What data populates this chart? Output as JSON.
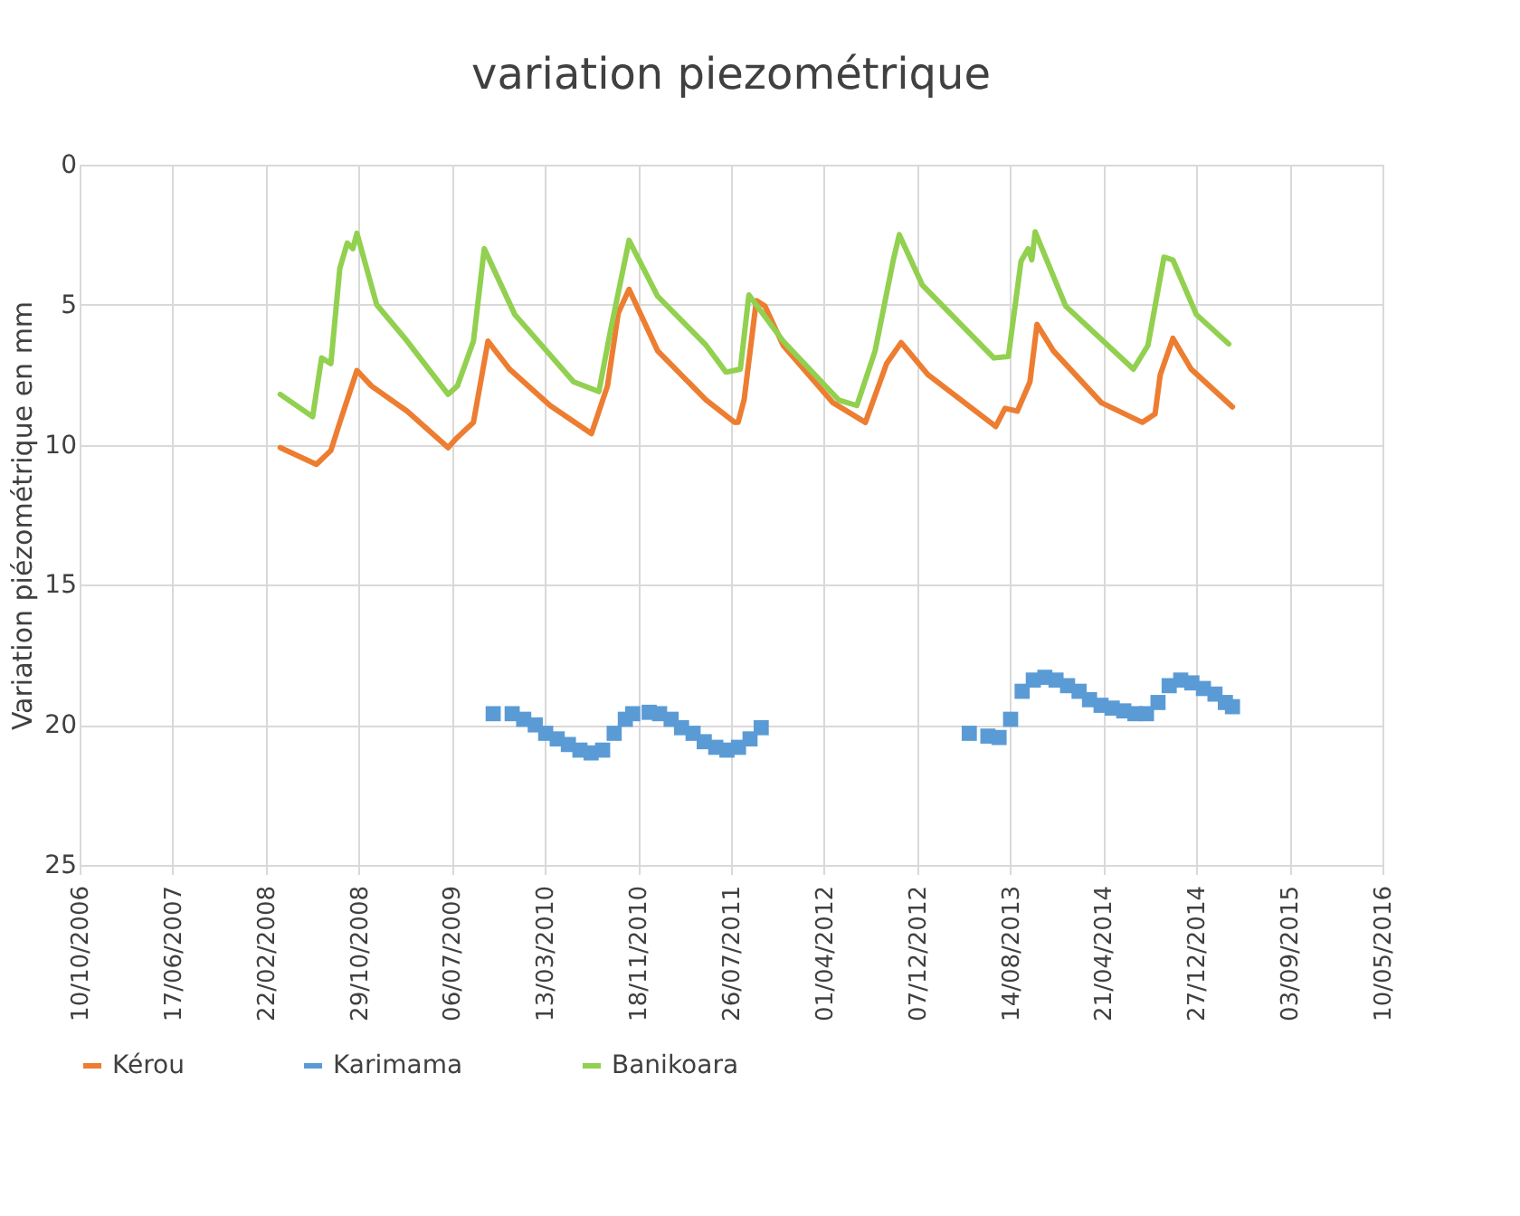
{
  "chart_data": {
    "type": "line",
    "title": "variation piezométrique",
    "ylabel": "Variation piézométrique en mm",
    "xlim": [
      "2006-10-10",
      "2016-05-10"
    ],
    "xticks": [
      {
        "value": "2006-10-10",
        "label": "10/10/2006"
      },
      {
        "value": "2007-06-17",
        "label": "17/06/2007"
      },
      {
        "value": "2008-02-22",
        "label": "22/02/2008"
      },
      {
        "value": "2008-10-29",
        "label": "29/10/2008"
      },
      {
        "value": "2009-07-06",
        "label": "06/07/2009"
      },
      {
        "value": "2010-03-13",
        "label": "13/03/2010"
      },
      {
        "value": "2010-11-18",
        "label": "18/11/2010"
      },
      {
        "value": "2011-07-26",
        "label": "26/07/2011"
      },
      {
        "value": "2012-04-01",
        "label": "01/04/2012"
      },
      {
        "value": "2012-12-07",
        "label": "07/12/2012"
      },
      {
        "value": "2013-08-14",
        "label": "14/08/2013"
      },
      {
        "value": "2014-04-21",
        "label": "21/04/2014"
      },
      {
        "value": "2014-12-27",
        "label": "27/12/2014"
      },
      {
        "value": "2015-09-03",
        "label": "03/09/2015"
      },
      {
        "value": "2016-05-10",
        "label": "10/05/2016"
      }
    ],
    "ylim": [
      25,
      0
    ],
    "yticks": [
      0,
      5,
      10,
      15,
      20,
      25
    ],
    "grid": true,
    "legend": "bottom",
    "series": [
      {
        "name": "Kérou",
        "color": "#ed7d31",
        "x": [
          "2008-04-01",
          "2008-07-07",
          "2008-08-15",
          "2008-09-08",
          "2008-10-24",
          "2008-12-02",
          "2009-03-08",
          "2009-06-26",
          "2009-07-16",
          "2009-09-02",
          "2009-10-11",
          "2009-12-08",
          "2010-03-27",
          "2010-07-16",
          "2010-08-28",
          "2010-09-26",
          "2010-10-25",
          "2011-01-10",
          "2011-05-20",
          "2011-08-05",
          "2011-08-14",
          "2011-08-30",
          "2011-10-02",
          "2011-10-25",
          "2011-12-13",
          "2012-04-25",
          "2012-07-21",
          "2012-09-16",
          "2012-10-25",
          "2013-01-05",
          "2013-07-06",
          "2013-07-31",
          "2013-09-02",
          "2013-10-06",
          "2013-10-25",
          "2013-12-08",
          "2014-04-16",
          "2014-08-04",
          "2014-09-07",
          "2014-09-21",
          "2014-10-25",
          "2014-12-13",
          "2015-04-03"
        ],
        "values": [
          10.1,
          10.7,
          10.2,
          9.2,
          7.35,
          7.9,
          8.8,
          10.1,
          9.8,
          9.2,
          6.3,
          7.3,
          8.6,
          9.6,
          7.9,
          5.3,
          4.45,
          6.65,
          8.4,
          9.2,
          9.2,
          8.4,
          4.85,
          5.05,
          6.45,
          8.5,
          9.2,
          7.1,
          6.35,
          7.5,
          9.35,
          8.7,
          8.8,
          7.75,
          5.7,
          6.65,
          8.5,
          9.2,
          8.9,
          7.5,
          6.2,
          7.3,
          8.65
        ]
      },
      {
        "name": "Karimama",
        "type": "scatter",
        "marker": "square",
        "color": "#5b9bd5",
        "x": [
          "2009-10-25",
          "2009-12-15",
          "2010-01-15",
          "2010-02-15",
          "2010-03-15",
          "2010-04-15",
          "2010-05-15",
          "2010-06-15",
          "2010-07-15",
          "2010-08-15",
          "2010-09-15",
          "2010-10-15",
          "2010-11-04",
          "2010-12-18",
          "2011-01-15",
          "2011-02-15",
          "2011-03-15",
          "2011-04-15",
          "2011-05-15",
          "2011-06-15",
          "2011-07-15",
          "2011-08-15",
          "2011-09-15",
          "2011-10-15",
          "2013-04-26",
          "2013-06-15",
          "2013-07-15",
          "2013-08-15",
          "2013-09-15",
          "2013-10-15",
          "2013-11-15",
          "2013-12-15",
          "2014-01-15",
          "2014-02-15",
          "2014-03-15",
          "2014-04-15",
          "2014-05-15",
          "2014-06-15",
          "2014-07-15",
          "2014-08-15",
          "2014-09-15",
          "2014-10-15",
          "2014-11-15",
          "2014-12-15",
          "2015-01-15",
          "2015-02-15",
          "2015-03-15",
          "2015-04-03"
        ],
        "values": [
          19.6,
          19.6,
          19.8,
          20.0,
          20.3,
          20.5,
          20.7,
          20.9,
          21.0,
          20.9,
          20.3,
          19.8,
          19.6,
          19.55,
          19.6,
          19.8,
          20.1,
          20.3,
          20.6,
          20.8,
          20.9,
          20.8,
          20.5,
          20.1,
          20.3,
          20.4,
          20.45,
          19.8,
          18.8,
          18.4,
          18.3,
          18.4,
          18.6,
          18.8,
          19.1,
          19.3,
          19.4,
          19.5,
          19.6,
          19.6,
          19.2,
          18.6,
          18.4,
          18.5,
          18.7,
          18.9,
          19.2,
          19.35
        ]
      },
      {
        "name": "Banikoara",
        "color": "#92d050",
        "x": [
          "2008-04-01",
          "2008-06-27",
          "2008-07-21",
          "2008-08-15",
          "2008-09-08",
          "2008-09-28",
          "2008-10-13",
          "2008-10-24",
          "2008-12-16",
          "2009-03-08",
          "2009-06-26",
          "2009-07-21",
          "2009-09-02",
          "2009-10-01",
          "2009-12-22",
          "2010-05-29",
          "2010-08-05",
          "2010-09-04",
          "2010-10-25",
          "2011-01-10",
          "2011-05-20",
          "2011-07-12",
          "2011-07-16",
          "2011-08-20",
          "2011-09-12",
          "2011-12-13",
          "2012-05-10",
          "2012-06-28",
          "2012-08-16",
          "2012-10-04",
          "2012-10-20",
          "2012-12-21",
          "2013-07-01",
          "2013-08-09",
          "2013-09-12",
          "2013-10-01",
          "2013-10-11",
          "2013-10-20",
          "2014-01-10",
          "2014-07-11",
          "2014-08-19",
          "2014-10-01",
          "2014-10-25",
          "2014-12-27",
          "2015-03-24"
        ],
        "values": [
          8.2,
          9.0,
          6.9,
          7.1,
          3.7,
          2.8,
          3.0,
          2.45,
          5.0,
          6.3,
          8.2,
          7.9,
          6.3,
          3.0,
          5.35,
          7.75,
          8.1,
          6.0,
          2.7,
          4.7,
          6.45,
          7.4,
          7.4,
          7.3,
          4.65,
          6.3,
          8.4,
          8.6,
          6.65,
          3.4,
          2.5,
          4.3,
          6.9,
          6.85,
          3.45,
          3.0,
          3.4,
          2.4,
          5.05,
          7.3,
          6.45,
          3.3,
          3.4,
          5.35,
          6.4
        ]
      }
    ]
  }
}
